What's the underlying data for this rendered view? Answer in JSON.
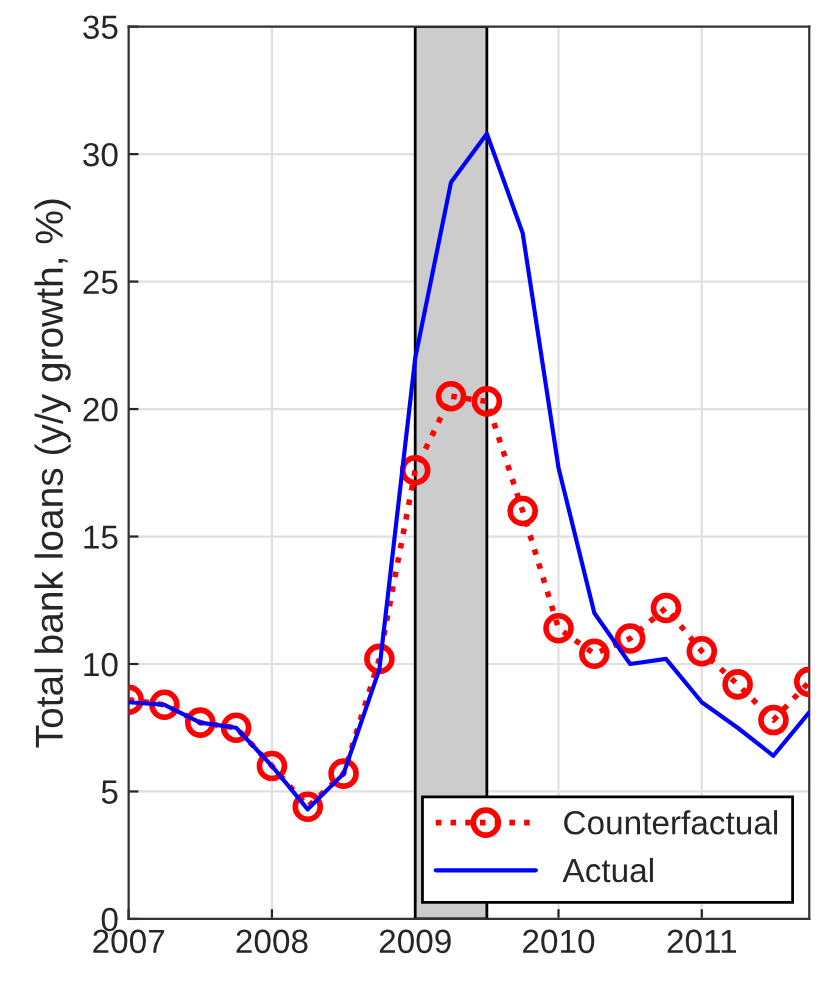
{
  "chart_data": {
    "type": "line",
    "ylabel": "Total bank loans (y/y growth, %)",
    "x": [
      2007,
      2007.25,
      2007.5,
      2007.75,
      2008,
      2008.25,
      2008.5,
      2008.75,
      2009,
      2009.25,
      2009.5,
      2009.75,
      2010,
      2010.25,
      2010.5,
      2010.75,
      2011,
      2011.25,
      2011.5,
      2011.75
    ],
    "series": [
      {
        "name": "Counterfactual",
        "color": "#ff0000",
        "marker": "circle",
        "line_style": "dotted",
        "values": [
          8.6,
          8.4,
          7.7,
          7.5,
          6.0,
          4.4,
          5.7,
          10.2,
          17.6,
          20.5,
          20.3,
          16.0,
          11.4,
          10.4,
          11.0,
          12.2,
          10.5,
          9.2,
          7.8,
          9.3
        ]
      },
      {
        "name": "Actual",
        "color": "#0000ff",
        "marker": "none",
        "line_style": "solid",
        "values": [
          8.5,
          8.4,
          7.7,
          7.5,
          6.0,
          4.3,
          5.7,
          9.8,
          22.0,
          28.9,
          30.8,
          26.9,
          17.7,
          12.0,
          10.0,
          10.2,
          8.5,
          7.5,
          6.4,
          8.1
        ]
      }
    ],
    "bands": [
      {
        "axis": "x",
        "from": 2009,
        "to": 2009.5,
        "color": "#cccccc"
      }
    ],
    "xlim": [
      2007,
      2011.75
    ],
    "xticks": [
      2007,
      2008,
      2009,
      2010,
      2011
    ],
    "ylim": [
      0,
      35
    ],
    "yticks": [
      0,
      5,
      10,
      15,
      20,
      25,
      30,
      35
    ],
    "grid": true,
    "legend": "bottom right"
  }
}
